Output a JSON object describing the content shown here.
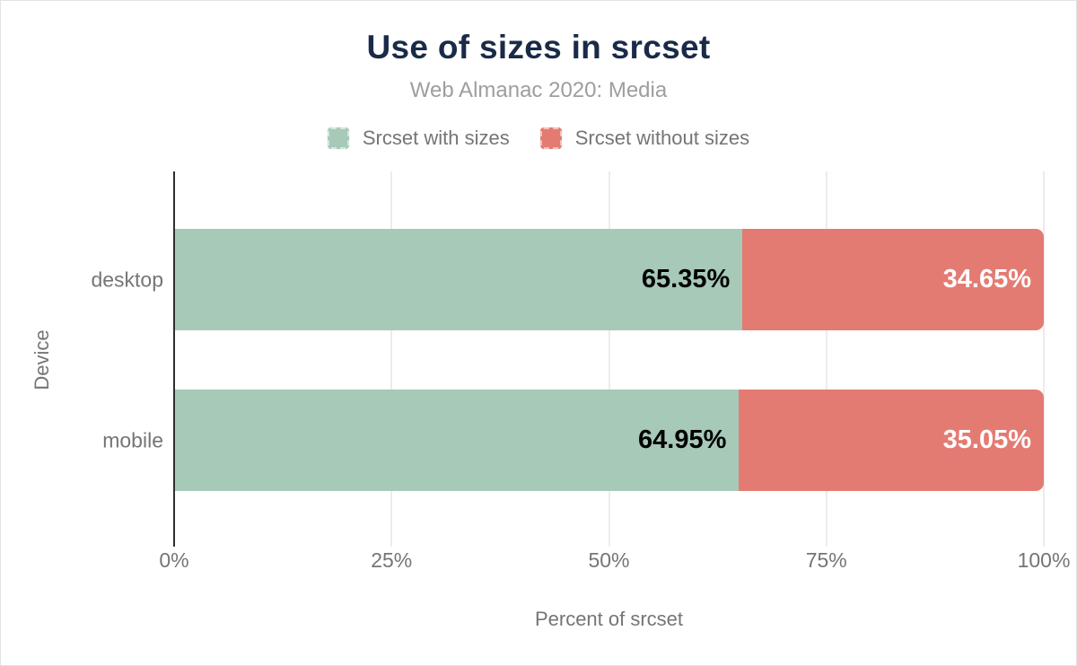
{
  "chart": {
    "title": "Use of sizes in srcset",
    "subtitle": "Web Almanac 2020: Media",
    "x_axis_label": "Percent of srcset",
    "y_axis_label": "Device"
  },
  "chart_data": {
    "type": "bar",
    "orientation": "horizontal",
    "stacked": true,
    "title": "Use of sizes in srcset",
    "subtitle": "Web Almanac 2020: Media",
    "xlabel": "Percent of srcset",
    "ylabel": "Device",
    "categories": [
      "desktop",
      "mobile"
    ],
    "series": [
      {
        "name": "Srcset with sizes",
        "color": "#a6c9b8",
        "label_text_color": "#000000",
        "values": [
          65.35,
          64.95
        ],
        "labels": [
          "65.35%",
          "64.95%"
        ]
      },
      {
        "name": "Srcset without sizes",
        "color": "#e47b72",
        "label_text_color": "#ffffff",
        "values": [
          34.65,
          35.05
        ],
        "labels": [
          "34.65%",
          "35.05%"
        ]
      }
    ],
    "xlim": [
      0,
      100
    ],
    "x_ticks": [
      {
        "value": 0,
        "label": "0%"
      },
      {
        "value": 25,
        "label": "25%"
      },
      {
        "value": 50,
        "label": "50%"
      },
      {
        "value": 75,
        "label": "75%"
      },
      {
        "value": 100,
        "label": "100%"
      }
    ],
    "grid": true,
    "legend_position": "top"
  },
  "colors": {
    "title": "#1a2b49",
    "subtitle": "#9e9e9e",
    "axis_text": "#757575",
    "gridline": "#ececec",
    "axis_line": "#2e2e2e",
    "background": "#ffffff"
  }
}
